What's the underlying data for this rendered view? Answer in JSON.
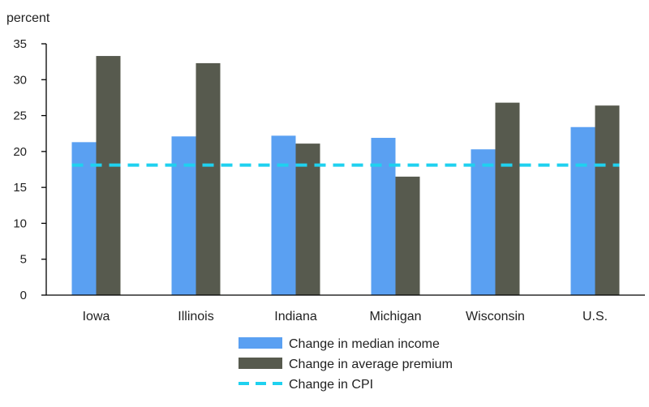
{
  "chart_data": {
    "type": "bar",
    "categories": [
      "Iowa",
      "Illinois",
      "Indiana",
      "Michigan",
      "Wisconsin",
      "U.S."
    ],
    "series": [
      {
        "name": "Change in median income",
        "kind": "bar",
        "color": "#5aa0f2",
        "values": [
          21.3,
          22.1,
          22.2,
          21.9,
          20.3,
          23.4
        ]
      },
      {
        "name": "Change in average premium",
        "kind": "bar",
        "color": "#575a4e",
        "values": [
          33.3,
          32.3,
          21.1,
          16.5,
          26.8,
          26.4
        ]
      },
      {
        "name": "Change in CPI",
        "kind": "line",
        "style": "dashed",
        "color": "#1fd1ef",
        "values": [
          18.1,
          18.1,
          18.1,
          18.1,
          18.1,
          18.1
        ]
      }
    ],
    "ylabel": "percent",
    "ylim": [
      0,
      35
    ],
    "yticks": [
      0,
      5,
      10,
      15,
      20,
      25,
      30,
      35
    ],
    "grid": false,
    "legend_position": "bottom-center"
  }
}
